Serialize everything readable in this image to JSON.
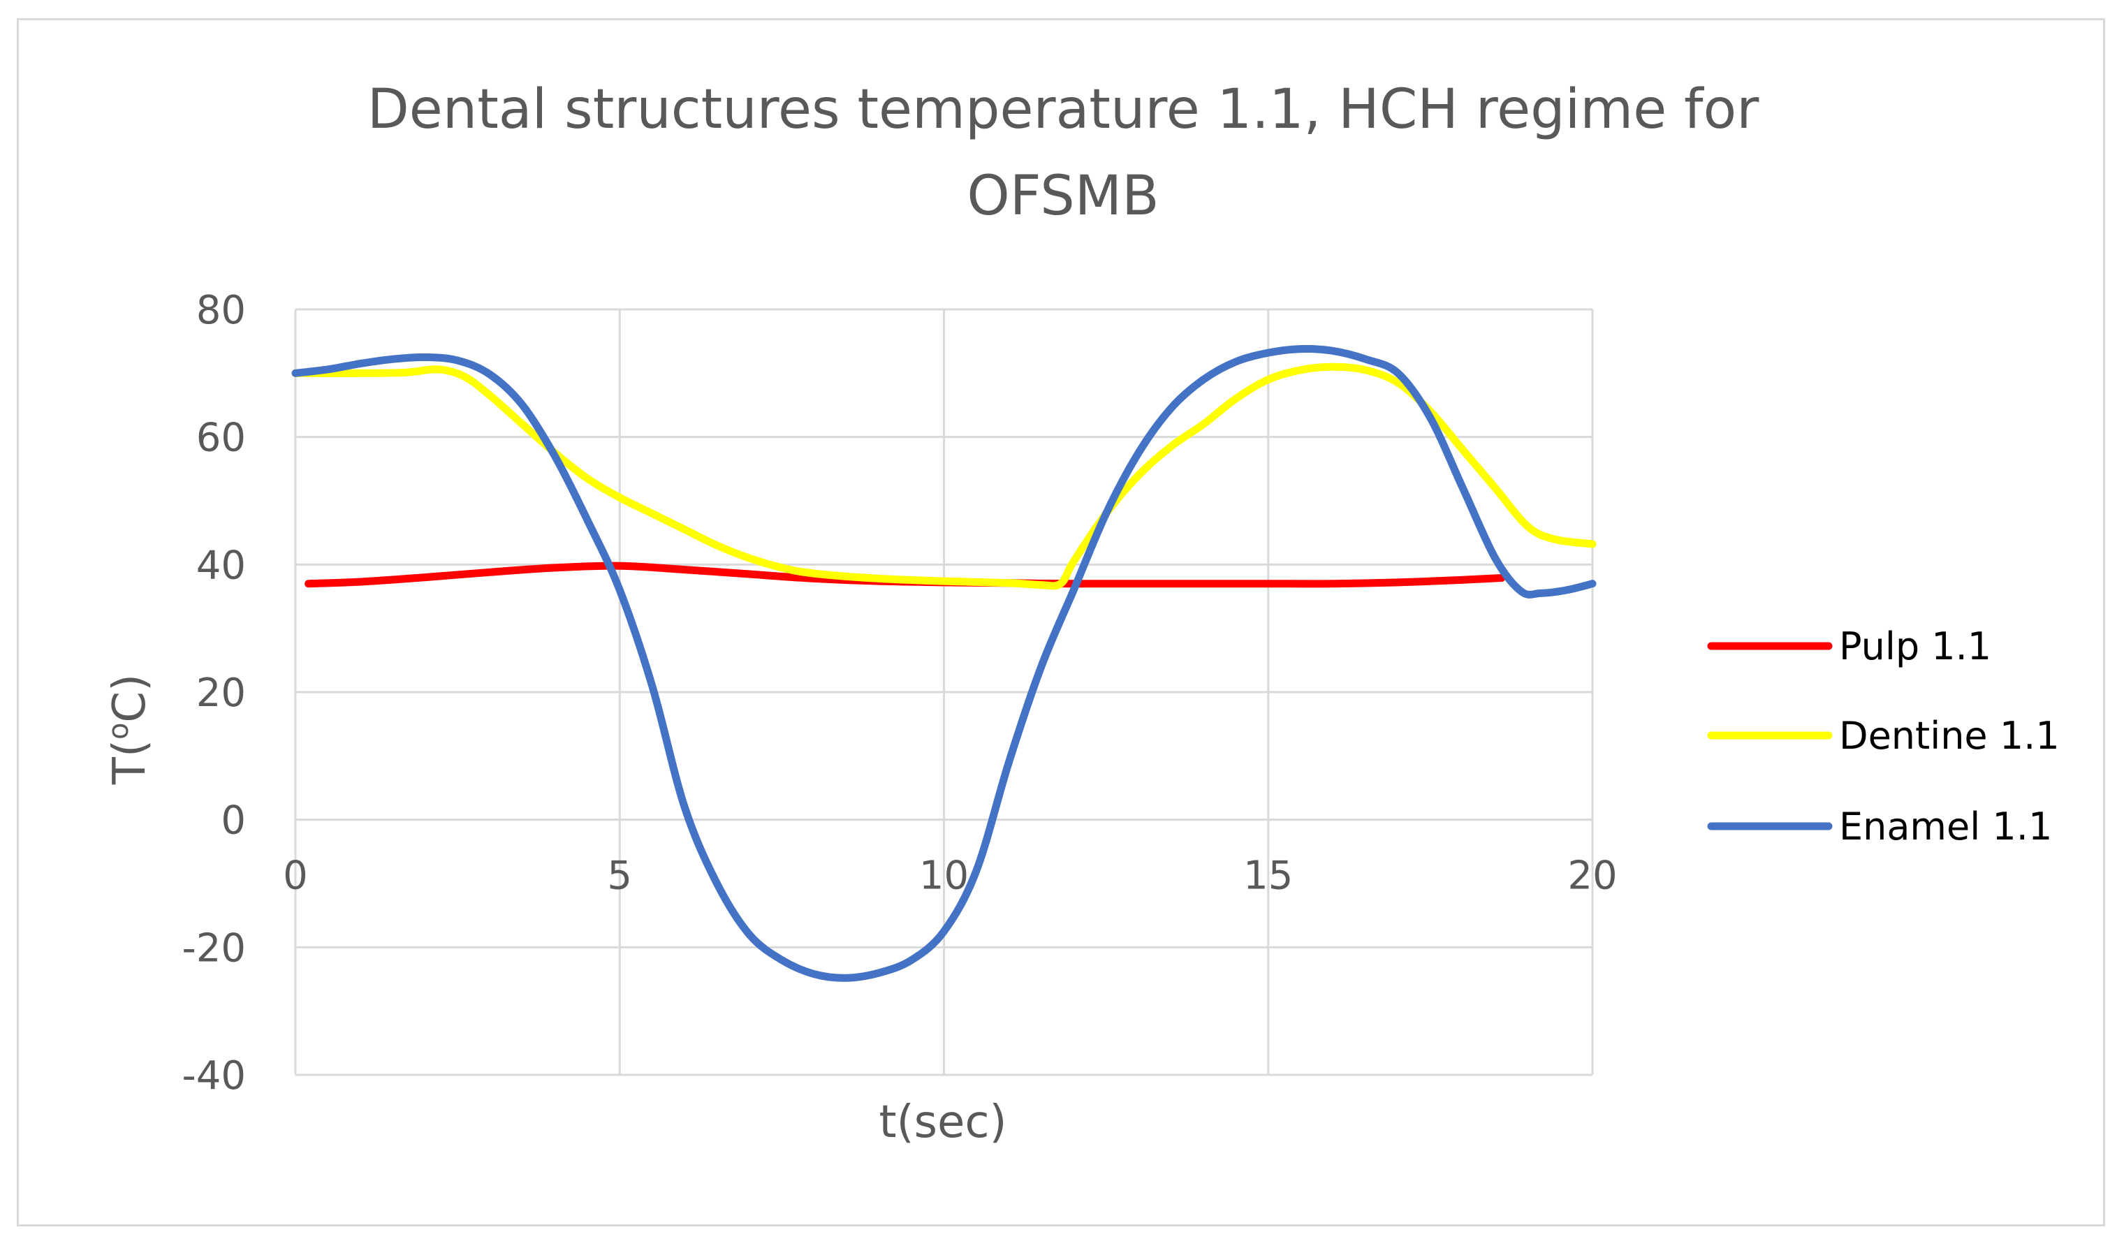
{
  "chart_data": {
    "type": "line",
    "title_lines": [
      "Dental structures temperature 1.1, HCH regime for",
      "OFSMB"
    ],
    "xlabel": "t(sec)",
    "ylabel_main": "T(",
    "ylabel_sup": "o",
    "ylabel_tail": "C)",
    "xlim": [
      0,
      20
    ],
    "ylim": [
      -40,
      80
    ],
    "x_ticks": [
      0,
      5,
      10,
      15,
      20
    ],
    "y_ticks": [
      -40,
      -20,
      0,
      20,
      40,
      60,
      80
    ],
    "grid": true,
    "legend_position": "right",
    "series": [
      {
        "name": "Pulp 1.1",
        "color": "#ff0000",
        "points": [
          [
            0.2,
            37
          ],
          [
            1,
            37.3
          ],
          [
            2,
            38
          ],
          [
            3,
            38.8
          ],
          [
            4,
            39.5
          ],
          [
            5,
            39.8
          ],
          [
            6,
            39.2
          ],
          [
            7,
            38.5
          ],
          [
            8,
            37.8
          ],
          [
            9,
            37.4
          ],
          [
            10,
            37.2
          ],
          [
            11,
            37.1
          ],
          [
            12,
            37
          ],
          [
            13,
            37
          ],
          [
            14,
            37
          ],
          [
            15,
            37
          ],
          [
            16,
            37
          ],
          [
            17,
            37.2
          ],
          [
            18,
            37.6
          ],
          [
            18.6,
            37.9
          ]
        ]
      },
      {
        "name": "Dentine 1.1",
        "color": "#ffff00",
        "points": [
          [
            0,
            70
          ],
          [
            1,
            70
          ],
          [
            1.7,
            70.1
          ],
          [
            2.2,
            70.6
          ],
          [
            2.6,
            69.5
          ],
          [
            3,
            66.5
          ],
          [
            3.5,
            62
          ],
          [
            4,
            57.5
          ],
          [
            4.5,
            53.5
          ],
          [
            5,
            50.5
          ],
          [
            5.5,
            48
          ],
          [
            6,
            45.5
          ],
          [
            6.5,
            43
          ],
          [
            7,
            41
          ],
          [
            7.5,
            39.5
          ],
          [
            8,
            38.6
          ],
          [
            9,
            37.8
          ],
          [
            10,
            37.4
          ],
          [
            11,
            37.1
          ],
          [
            11.5,
            36.8
          ],
          [
            11.8,
            37
          ],
          [
            12,
            40.5
          ],
          [
            12.5,
            48
          ],
          [
            13,
            54
          ],
          [
            13.5,
            58.5
          ],
          [
            14,
            62
          ],
          [
            14.5,
            66
          ],
          [
            15,
            69
          ],
          [
            15.5,
            70.5
          ],
          [
            16,
            71
          ],
          [
            16.5,
            70.5
          ],
          [
            17,
            68.5
          ],
          [
            17.5,
            64
          ],
          [
            18,
            58
          ],
          [
            18.5,
            52
          ],
          [
            19,
            46
          ],
          [
            19.4,
            44
          ],
          [
            20,
            43.2
          ]
        ]
      },
      {
        "name": "Enamel 1.1",
        "color": "#4472c4",
        "points": [
          [
            0,
            70
          ],
          [
            0.5,
            70.6
          ],
          [
            1,
            71.5
          ],
          [
            1.5,
            72.2
          ],
          [
            2,
            72.5
          ],
          [
            2.5,
            72
          ],
          [
            3,
            69.8
          ],
          [
            3.5,
            65
          ],
          [
            4,
            57
          ],
          [
            4.5,
            47
          ],
          [
            5,
            36
          ],
          [
            5.5,
            21
          ],
          [
            6,
            2
          ],
          [
            6.5,
            -10
          ],
          [
            7,
            -18
          ],
          [
            7.5,
            -22
          ],
          [
            8,
            -24.2
          ],
          [
            8.5,
            -24.8
          ],
          [
            9,
            -24
          ],
          [
            9.5,
            -22
          ],
          [
            10,
            -17.5
          ],
          [
            10.5,
            -8
          ],
          [
            11,
            9
          ],
          [
            11.5,
            24
          ],
          [
            12,
            36
          ],
          [
            12.5,
            48
          ],
          [
            13,
            57.5
          ],
          [
            13.5,
            64.5
          ],
          [
            14,
            69
          ],
          [
            14.5,
            71.8
          ],
          [
            15,
            73.2
          ],
          [
            15.5,
            73.8
          ],
          [
            16,
            73.5
          ],
          [
            16.5,
            72.2
          ],
          [
            17,
            70
          ],
          [
            17.5,
            63
          ],
          [
            18,
            52
          ],
          [
            18.5,
            41
          ],
          [
            18.9,
            35.8
          ],
          [
            19.2,
            35.5
          ],
          [
            19.6,
            36
          ],
          [
            20,
            37
          ]
        ]
      }
    ]
  }
}
